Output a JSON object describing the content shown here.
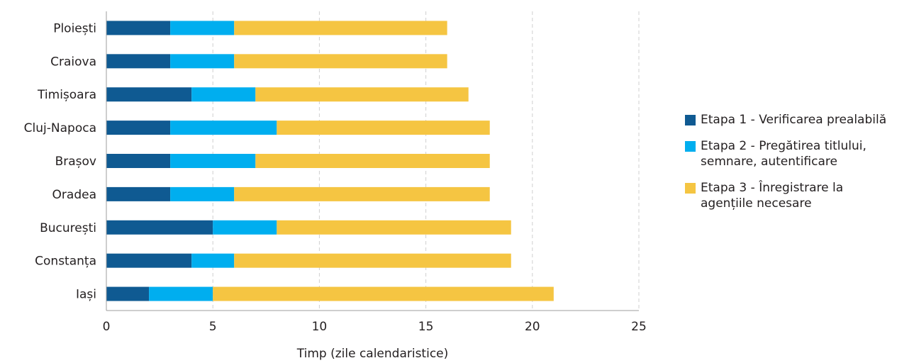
{
  "chart_data": {
    "type": "bar",
    "orientation": "horizontal",
    "stacked": true,
    "categories": [
      "Ploiești",
      "Craiova",
      "Timișoara",
      "Cluj-Napoca",
      "Brașov",
      "Oradea",
      "București",
      "Constanța",
      "Iași"
    ],
    "series": [
      {
        "name": "Etapa 1 - Verificarea prealabilă",
        "color": "#0f5a92",
        "values": [
          3,
          3,
          4,
          3,
          3,
          3,
          5,
          4,
          2
        ]
      },
      {
        "name": "Etapa 2 - Pregătirea titlului, semnare, autentificare",
        "color": "#00aeef",
        "values": [
          3,
          3,
          3,
          5,
          4,
          3,
          3,
          2,
          3
        ]
      },
      {
        "name": "Etapa 3 - Înregistrare la agențiile necesare",
        "color": "#f5c542",
        "values": [
          10,
          10,
          10,
          10,
          11,
          12,
          11,
          13,
          16
        ]
      }
    ],
    "xlabel": "Timp (zile calendaristice)",
    "ylabel": "",
    "xlim": [
      0,
      25
    ],
    "xticks": [
      0,
      5,
      10,
      15,
      20,
      25
    ],
    "grid": "vertical dashed",
    "legend_position": "right"
  },
  "legend": {
    "items": [
      {
        "label_lines": [
          "Etapa 1 - Verificarea prealabilă"
        ],
        "color": "#0f5a92"
      },
      {
        "label_lines": [
          "Etapa 2 - Pregătirea titlului,",
          "semnare, autentificare"
        ],
        "color": "#00aeef"
      },
      {
        "label_lines": [
          "Etapa 3 - Înregistrare la",
          "agențiile necesare"
        ],
        "color": "#f5c542"
      }
    ]
  }
}
